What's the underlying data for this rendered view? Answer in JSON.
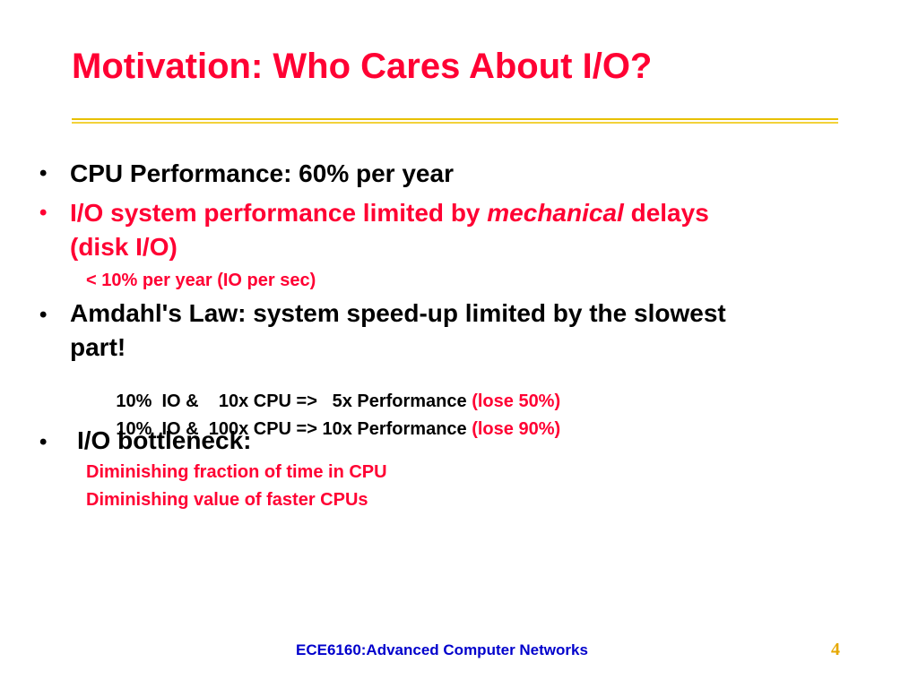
{
  "slide": {
    "title": "Motivation: Who Cares About I/O?",
    "bullet_glyph": "•",
    "bullets": [
      {
        "text": "CPU Performance: 60% per year"
      },
      {
        "text_before": "I/O system performance limited by ",
        "emphasis": "mechanical",
        "text_after": " delays",
        "continuation": "(disk I/O)",
        "sub": "< 10% per year (IO per sec)"
      },
      {
        "text": "Amdahl's Law: system speed-up limited by the slowest",
        "continuation": "part!",
        "sub_lines": [
          {
            "main": "10%  IO &    10x CPU =>   5x Performance ",
            "highlight": "(lose 50%)"
          },
          {
            "main": "10%  IO &  100x CPU => 10x Performance ",
            "highlight": "(lose 90%)"
          }
        ]
      },
      {
        "text": "I/O bottleneck:",
        "sub_lines": [
          "Diminishing fraction of time in CPU",
          "Diminishing value of faster CPUs"
        ]
      }
    ]
  },
  "footer": {
    "course": "ECE6160:Advanced Computer Networks",
    "page_number": "4"
  },
  "colors": {
    "title": "#ff0033",
    "accent_rule": "#e8c000",
    "footer_text": "#0000cc",
    "page_number": "#e6a800"
  }
}
